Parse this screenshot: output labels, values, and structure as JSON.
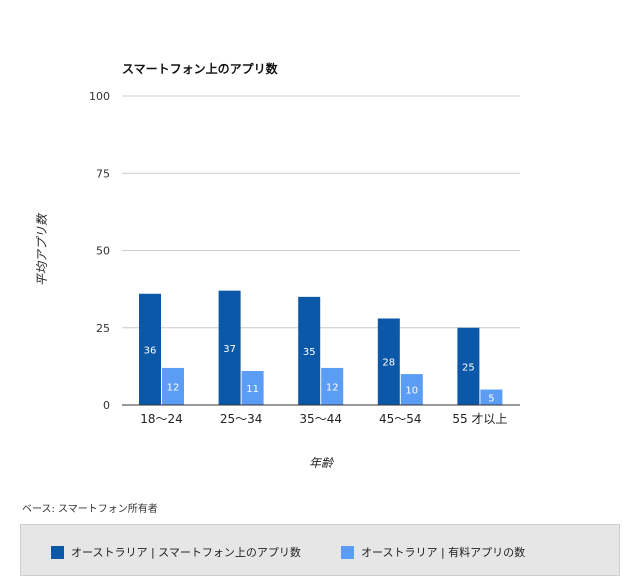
{
  "chart_data": {
    "type": "bar",
    "title": "スマートフォン上のアプリ数",
    "xlabel": "年齢",
    "ylabel": "平均アプリ数",
    "ylim": [
      0,
      100
    ],
    "yticks": [
      0,
      25,
      50,
      75,
      100
    ],
    "grid": true,
    "legend_position": "bottom",
    "categories": [
      "18〜24",
      "25〜34",
      "35〜44",
      "45〜54",
      "55 才以上"
    ],
    "series": [
      {
        "name": "オーストラリア | スマートフォン上のアプリ数",
        "color": "#0b57a8",
        "values": [
          36,
          37,
          35,
          28,
          25
        ],
        "labels": [
          "36",
          "37",
          "35",
          "28",
          "25"
        ]
      },
      {
        "name": "オーストラリア | 有料アプリの数",
        "color": "#5b9cf5",
        "values": [
          12,
          11,
          12,
          10,
          5
        ],
        "labels": [
          "12",
          "11",
          "12",
          "10",
          "5"
        ]
      }
    ]
  },
  "footnote": "ベース: スマートフォン所有者"
}
